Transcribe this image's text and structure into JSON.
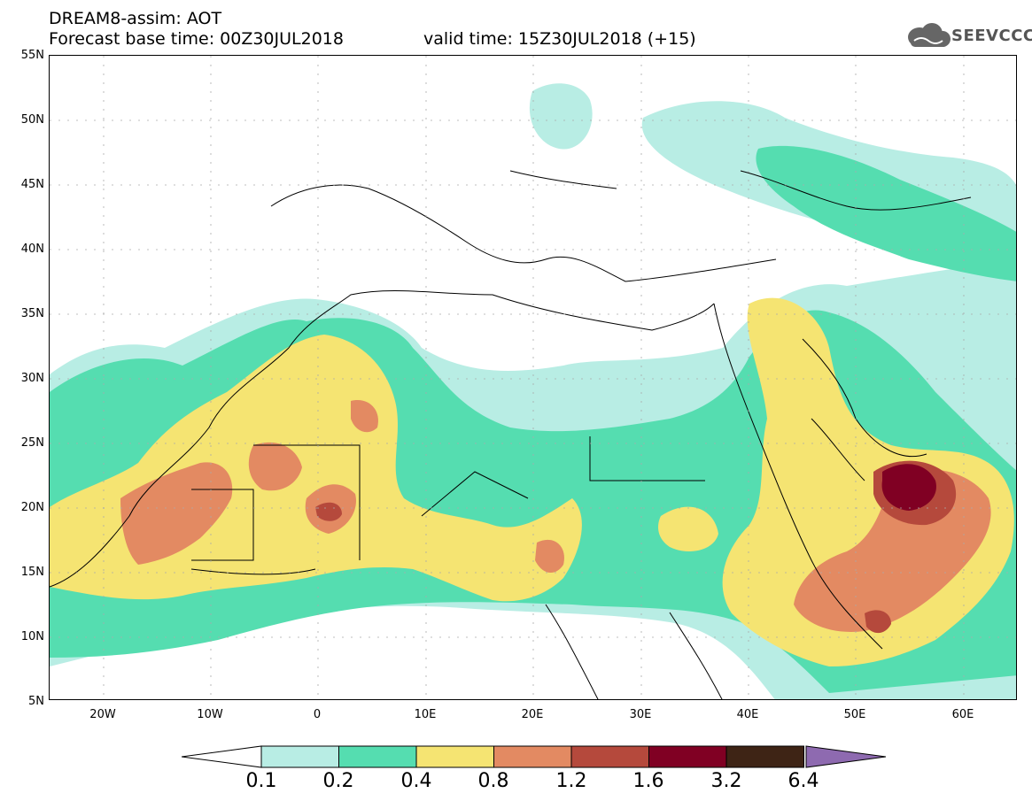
{
  "header": {
    "title": "DREAM8-assim: AOT",
    "base_time": "Forecast base time: 00Z30JUL2018",
    "valid_time": "valid time: 15Z30JUL2018 (+15)"
  },
  "logo": {
    "text": "SEEVCCC",
    "icon": "cloud-icon"
  },
  "map": {
    "lat_labels": [
      "55N",
      "50N",
      "45N",
      "40N",
      "35N",
      "30N",
      "25N",
      "20N",
      "15N",
      "10N",
      "5N"
    ],
    "lon_labels": [
      "20W",
      "10W",
      "0",
      "10E",
      "20E",
      "30E",
      "40E",
      "50E",
      "60E"
    ],
    "lat_range": [
      5,
      55
    ],
    "lon_range": [
      -25,
      65
    ]
  },
  "legend": {
    "labels": [
      "0.1",
      "0.2",
      "0.4",
      "0.8",
      "1.2",
      "1.6",
      "3.2",
      "6.4"
    ],
    "colors": [
      "#b8ede4",
      "#55ddb0",
      "#f5e472",
      "#e38a62",
      "#b5493c",
      "#800023",
      "#3e2415",
      "#8e6ab0"
    ]
  }
}
